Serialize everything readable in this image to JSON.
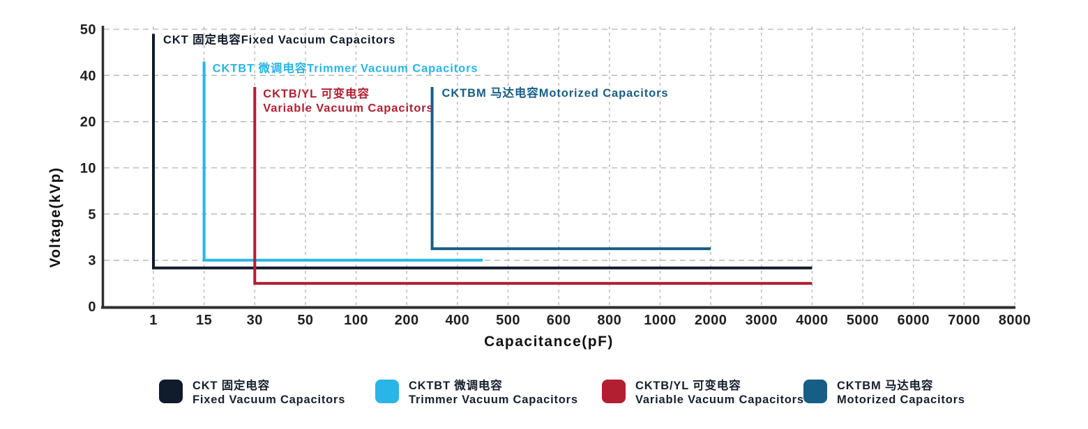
{
  "chart_data": {
    "type": "line",
    "subtype": "operating-range-outlines",
    "title": "",
    "xlabel": "Capacitance(pF)",
    "ylabel": "Voltage(kVp)",
    "grid": "dashed",
    "legend_position": "bottom",
    "x_tick_labels": [
      "1",
      "15",
      "30",
      "50",
      "100",
      "200",
      "400",
      "500",
      "600",
      "800",
      "1000",
      "2000",
      "3000",
      "4000",
      "5000",
      "6000",
      "7000",
      "8000"
    ],
    "x_tick_values": [
      1,
      15,
      30,
      50,
      100,
      200,
      400,
      500,
      600,
      800,
      1000,
      2000,
      3000,
      4000,
      5000,
      6000,
      7000,
      8000
    ],
    "y_tick_labels": [
      "50",
      "40",
      "20",
      "10",
      "5",
      "3",
      "0"
    ],
    "y_tick_values": [
      50,
      40,
      20,
      10,
      5,
      3,
      0
    ],
    "series": [
      {
        "id": "ckt",
        "name": "CKT 固定电容 Fixed Vacuum Capacitors",
        "color": "#101b2c",
        "capacitance_pF": [
          1,
          4000
        ],
        "voltage_kVp": [
          2.5,
          49
        ],
        "label_lines": [
          "CKT 固定电容Fixed Vacuum Capacitors"
        ],
        "label_offset": [
          14,
          14
        ]
      },
      {
        "id": "cktbt",
        "name": "CKTBT 微调电容 Trimmer Vacuum Capacitors",
        "color": "#29b5e8",
        "capacitance_pF": [
          15,
          450
        ],
        "voltage_kVp": [
          3,
          43
        ],
        "label_lines": [
          "CKTBT 微调电容Trimmer Vacuum Capacitors"
        ],
        "label_offset": [
          12,
          15
        ]
      },
      {
        "id": "cktb-yl",
        "name": "CKTB/YL 可变电容 Variable Vacuum Capacitors",
        "color": "#b11f31",
        "capacitance_pF": [
          30,
          4000
        ],
        "voltage_kVp": [
          1.5,
          35
        ],
        "label_lines": [
          "CKTB/YL 可变电容",
          "Variable Vacuum Capacitors"
        ],
        "label_offset": [
          12,
          15
        ]
      },
      {
        "id": "cktbm",
        "name": "CKTBM 马达电容 Motorized Capacitors",
        "color": "#175e86",
        "capacitance_pF": [
          300,
          2000
        ],
        "voltage_kVp": [
          3.5,
          35
        ],
        "label_lines": [
          "CKTBM 马达电容Motorized Capacitors"
        ],
        "label_offset": [
          14,
          14
        ]
      }
    ]
  },
  "legend": {
    "items": [
      {
        "color": "#101b2c",
        "line1": "CKT 固定电容",
        "line2": "Fixed Vacuum Capacitors"
      },
      {
        "color": "#29b5e8",
        "line1": "CKTBT 微调电容",
        "line2": "Trimmer Vacuum Capacitors"
      },
      {
        "color": "#b11f31",
        "line1": "CKTB/YL 可变电容",
        "line2": "Variable Vacuum Capacitors"
      },
      {
        "color": "#175e86",
        "line1": "CKTBM 马达电容",
        "line2": "Motorized Capacitors"
      }
    ]
  },
  "colors": {
    "axis": "#2f2f2f",
    "grid": "#b3b3b3",
    "tick_label": "#1f1f1f",
    "legend_text": "#16202d",
    "background": "#ffffff"
  }
}
